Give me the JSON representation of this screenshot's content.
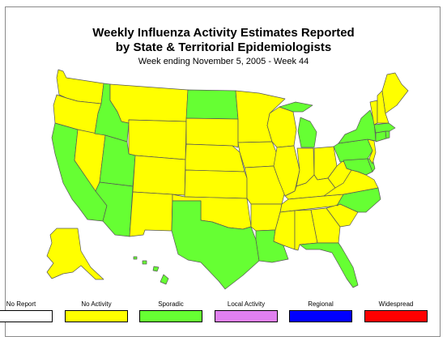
{
  "title_line1": "Weekly Influenza Activity Estimates Reported",
  "title_line2": "by State & Territorial Epidemiologists",
  "subtitle": "Week ending November 5, 2005 - Week 44",
  "colors": {
    "no_report": "#ffffff",
    "no_activity": "#ffff00",
    "sporadic": "#66ff33",
    "local": "#e080f0",
    "regional": "#0000ff",
    "widespread": "#ff0000",
    "border": "#555555"
  },
  "legend": [
    {
      "label": "No Report",
      "color": "#ffffff"
    },
    {
      "label": "No Activity",
      "color": "#ffff00"
    },
    {
      "label": "Sporadic",
      "color": "#66ff33"
    },
    {
      "label": "Local Activity",
      "color": "#e080f0"
    },
    {
      "label": "Regional",
      "color": "#0000ff"
    },
    {
      "label": "Widespread",
      "color": "#ff0000"
    }
  ],
  "states_sporadic": [
    "Idaho",
    "North Dakota",
    "Utah",
    "California",
    "Arizona",
    "Texas",
    "Louisiana",
    "Florida",
    "Michigan",
    "New York",
    "Pennsylvania",
    "North Carolina",
    "Hawaii",
    "Rhode Island",
    "Massachusetts",
    "Delaware",
    "Maryland",
    "Connecticut"
  ],
  "states_no_activity": [
    "Washington",
    "Oregon",
    "Nevada",
    "Montana",
    "Wyoming",
    "Colorado",
    "New Mexico",
    "South Dakota",
    "Nebraska",
    "Kansas",
    "Oklahoma",
    "Minnesota",
    "Iowa",
    "Missouri",
    "Arkansas",
    "Wisconsin",
    "Illinois",
    "Indiana",
    "Ohio",
    "Kentucky",
    "Tennessee",
    "Mississippi",
    "Alabama",
    "Georgia",
    "South Carolina",
    "Virginia",
    "West Virginia",
    "Maine",
    "Vermont",
    "New Hampshire",
    "New Jersey",
    "Alaska"
  ]
}
